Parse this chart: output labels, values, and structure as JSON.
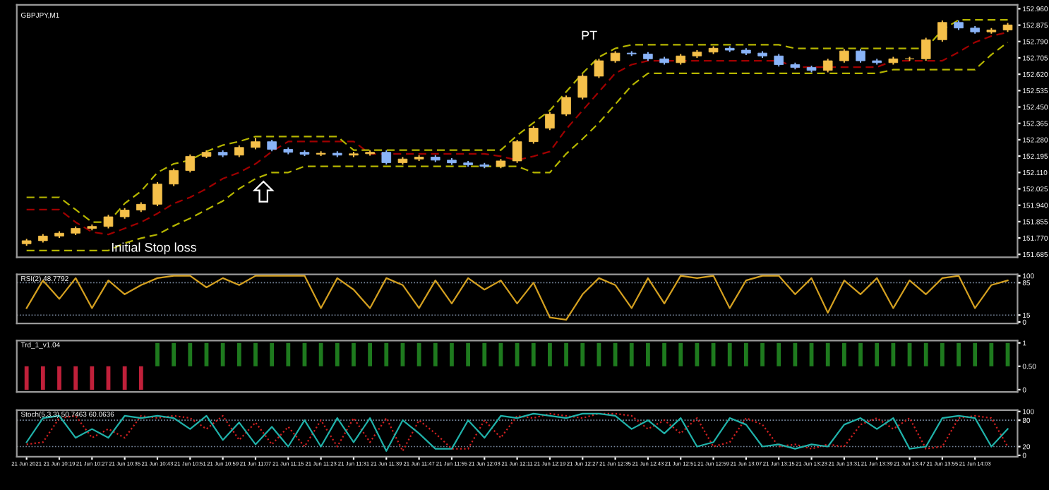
{
  "chart_data": [
    {
      "type": "candlestick",
      "title": "GBPJPY,M1",
      "categories": [
        null,
        null,
        null,
        null,
        null,
        null,
        null,
        null,
        null,
        null,
        null,
        null,
        null,
        null,
        null,
        null,
        null,
        null,
        null,
        null,
        null,
        null,
        null,
        null,
        null,
        null,
        null,
        null,
        null,
        null,
        null,
        null,
        null,
        null,
        null,
        null,
        null,
        null,
        null,
        null,
        null,
        null,
        null,
        null,
        null,
        null,
        null,
        null,
        null,
        null,
        null,
        null,
        null,
        null,
        null,
        null,
        null,
        null,
        null,
        null,
        null
      ],
      "ohlc": [
        [
          151.74,
          151.766,
          151.73,
          151.756
        ],
        [
          151.756,
          151.79,
          151.746,
          151.78
        ],
        [
          151.78,
          151.805,
          151.77,
          151.795
        ],
        [
          151.795,
          151.83,
          151.785,
          151.82
        ],
        [
          151.82,
          151.84,
          151.81,
          151.83
        ],
        [
          151.83,
          151.89,
          151.82,
          151.88
        ],
        [
          151.88,
          151.925,
          151.87,
          151.915
        ],
        [
          151.915,
          151.955,
          151.905,
          151.945
        ],
        [
          151.945,
          152.06,
          151.935,
          152.05
        ],
        [
          152.05,
          152.13,
          152.04,
          152.12
        ],
        [
          152.12,
          152.204,
          152.11,
          152.194
        ],
        [
          152.194,
          152.225,
          152.184,
          152.215
        ],
        [
          152.215,
          152.225,
          152.19,
          152.2
        ],
        [
          152.2,
          152.25,
          152.19,
          152.24
        ],
        [
          152.24,
          152.29,
          152.23,
          152.27
        ],
        [
          152.27,
          152.28,
          152.22,
          152.23
        ],
        [
          152.23,
          152.24,
          152.205,
          152.215
        ],
        [
          152.215,
          152.225,
          152.195,
          152.205
        ],
        [
          152.205,
          152.22,
          152.195,
          152.21
        ],
        [
          152.21,
          152.22,
          152.19,
          152.2
        ],
        [
          152.2,
          152.217,
          152.19,
          152.207
        ],
        [
          152.207,
          152.225,
          152.197,
          152.215
        ],
        [
          152.215,
          152.225,
          152.151,
          152.161
        ],
        [
          152.161,
          152.19,
          152.151,
          152.18
        ],
        [
          152.18,
          152.2,
          152.17,
          152.19
        ],
        [
          152.19,
          152.2,
          152.164,
          152.174
        ],
        [
          152.174,
          152.184,
          152.15,
          152.16
        ],
        [
          152.16,
          152.17,
          152.14,
          152.15
        ],
        [
          152.15,
          152.16,
          152.132,
          152.142
        ],
        [
          152.142,
          152.18,
          152.132,
          152.17
        ],
        [
          152.17,
          152.28,
          152.16,
          152.27
        ],
        [
          152.27,
          152.35,
          152.26,
          152.34
        ],
        [
          152.34,
          152.423,
          152.33,
          152.413
        ],
        [
          152.413,
          152.51,
          152.403,
          152.5
        ],
        [
          152.5,
          152.62,
          152.49,
          152.61
        ],
        [
          152.61,
          152.7,
          152.6,
          152.69
        ],
        [
          152.69,
          152.74,
          152.68,
          152.73
        ],
        [
          152.73,
          152.74,
          152.715,
          152.725
        ],
        [
          152.725,
          152.735,
          152.69,
          152.7
        ],
        [
          152.7,
          152.71,
          152.67,
          152.68
        ],
        [
          152.68,
          152.725,
          152.67,
          152.715
        ],
        [
          152.715,
          152.745,
          152.705,
          152.735
        ],
        [
          152.735,
          152.765,
          152.725,
          152.755
        ],
        [
          152.755,
          152.765,
          152.735,
          152.745
        ],
        [
          152.745,
          152.755,
          152.72,
          152.73
        ],
        [
          152.73,
          152.74,
          152.705,
          152.715
        ],
        [
          152.715,
          152.725,
          152.66,
          152.67
        ],
        [
          152.67,
          152.68,
          152.645,
          152.655
        ],
        [
          152.655,
          152.665,
          152.63,
          152.64
        ],
        [
          152.64,
          152.7,
          152.63,
          152.69
        ],
        [
          152.69,
          152.751,
          152.68,
          152.741
        ],
        [
          152.741,
          152.751,
          152.68,
          152.69
        ],
        [
          152.69,
          152.7,
          152.67,
          152.68
        ],
        [
          152.68,
          152.71,
          152.67,
          152.7
        ],
        [
          152.7,
          152.71,
          152.69,
          152.7
        ],
        [
          152.7,
          152.809,
          152.69,
          152.799
        ],
        [
          152.799,
          152.899,
          152.789,
          152.889
        ],
        [
          152.889,
          152.899,
          152.85,
          152.86
        ],
        [
          152.86,
          152.87,
          152.83,
          152.84
        ],
        [
          152.84,
          152.86,
          152.83,
          152.85
        ],
        [
          152.85,
          152.886,
          152.84,
          152.876
        ]
      ],
      "colors": [
        "#f5c04a",
        "#f5c04a",
        "#f5c04a",
        "#f5c04a",
        "#f5c04a",
        "#f5c04a",
        "#f5c04a",
        "#f5c04a",
        "#f5c04a",
        "#f5c04a",
        "#f5c04a",
        "#f5c04a",
        "#8ab4f8",
        "#f5c04a",
        "#f5c04a",
        "#8ab4f8",
        "#8ab4f8",
        "#8ab4f8",
        "#f5c04a",
        "#8ab4f8",
        "#f5c04a",
        "#f5c04a",
        "#8ab4f8",
        "#f5c04a",
        "#f5c04a",
        "#8ab4f8",
        "#8ab4f8",
        "#8ab4f8",
        "#8ab4f8",
        "#f5c04a",
        "#f5c04a",
        "#f5c04a",
        "#f5c04a",
        "#f5c04a",
        "#f5c04a",
        "#f5c04a",
        "#f5c04a",
        "#8ab4f8",
        "#8ab4f8",
        "#8ab4f8",
        "#f5c04a",
        "#f5c04a",
        "#f5c04a",
        "#8ab4f8",
        "#8ab4f8",
        "#8ab4f8",
        "#8ab4f8",
        "#8ab4f8",
        "#8ab4f8",
        "#f5c04a",
        "#f5c04a",
        "#8ab4f8",
        "#8ab4f8",
        "#f5c04a",
        "#f5c04a",
        "#f5c04a",
        "#f5c04a",
        "#8ab4f8",
        "#8ab4f8",
        "#f5c04a",
        "#f5c04a"
      ],
      "series": [
        {
          "type": "line",
          "color": "#b5b500",
          "line_style": "dashed",
          "values": [
            151.981,
            151.981,
            151.981,
            151.917,
            151.852,
            151.852,
            151.949,
            152.013,
            152.11,
            152.155,
            152.174,
            152.219,
            152.252,
            152.271,
            152.297,
            152.297,
            152.297,
            152.297,
            152.297,
            152.297,
            152.226,
            152.226,
            152.226,
            152.226,
            152.226,
            152.226,
            152.226,
            152.226,
            152.226,
            152.226,
            152.303,
            152.368,
            152.432,
            152.529,
            152.625,
            152.709,
            152.754,
            152.773,
            152.773,
            152.773,
            152.773,
            152.773,
            152.773,
            152.773,
            152.773,
            152.773,
            152.773,
            152.754,
            152.754,
            152.754,
            152.754,
            152.754,
            152.754,
            152.754,
            152.754,
            152.754,
            152.851,
            152.902,
            152.902,
            152.902,
            152.902
          ]
        },
        {
          "type": "line",
          "color": "#b5b500",
          "line_style": "dashed",
          "values": [
            151.705,
            151.705,
            151.705,
            151.705,
            151.705,
            151.705,
            151.743,
            151.769,
            151.788,
            151.833,
            151.872,
            151.917,
            151.962,
            152.026,
            152.078,
            152.11,
            152.11,
            152.142,
            152.142,
            152.142,
            152.142,
            152.142,
            152.142,
            152.142,
            152.142,
            152.142,
            152.142,
            152.142,
            152.142,
            152.142,
            152.142,
            152.11,
            152.11,
            152.207,
            152.284,
            152.368,
            152.464,
            152.561,
            152.625,
            152.625,
            152.625,
            152.625,
            152.625,
            152.625,
            152.625,
            152.625,
            152.625,
            152.625,
            152.625,
            152.625,
            152.625,
            152.625,
            152.625,
            152.644,
            152.644,
            152.644,
            152.644,
            152.644,
            152.644,
            152.722,
            152.786
          ]
        },
        {
          "type": "line",
          "color": "#a00000",
          "line_style": "dashed",
          "values": [
            151.917,
            151.917,
            151.917,
            151.852,
            151.801,
            151.788,
            151.82,
            151.852,
            151.897,
            151.949,
            151.981,
            152.026,
            152.078,
            152.11,
            152.155,
            152.219,
            152.271,
            152.271,
            152.271,
            152.271,
            152.271,
            152.207,
            152.207,
            152.207,
            152.207,
            152.207,
            152.207,
            152.207,
            152.207,
            152.194,
            152.174,
            152.194,
            152.219,
            152.335,
            152.432,
            152.529,
            152.625,
            152.67,
            152.69,
            152.69,
            152.69,
            152.69,
            152.69,
            152.69,
            152.69,
            152.69,
            152.69,
            152.657,
            152.657,
            152.657,
            152.657,
            152.657,
            152.657,
            152.69,
            152.69,
            152.69,
            152.69,
            152.735,
            152.786,
            152.818,
            152.838
          ]
        }
      ],
      "annotations": [
        "Initial Stop loss",
        "PT"
      ],
      "ylim": [
        151.67,
        152.98
      ],
      "yticks": [
        {
          "value": 151.685,
          "label": "151.685"
        },
        {
          "value": 151.77,
          "label": "151.770"
        },
        151.855,
        {
          "value": 151.94,
          "label": "151.940"
        },
        152.025,
        {
          "value": 152.11,
          "label": "152.110"
        },
        152.195,
        {
          "value": 152.28,
          "label": "152.280"
        },
        152.365,
        {
          "value": 152.45,
          "label": "152.450"
        },
        152.535,
        {
          "value": 152.62,
          "label": "152.620"
        },
        152.705,
        {
          "value": 152.79,
          "label": "152.790"
        },
        152.875,
        {
          "value": 152.96,
          "label": "152.960"
        }
      ],
      "tick_labels": "y"
    },
    {
      "type": "line",
      "title": "RSI(2) 48.7792",
      "categories": [
        null,
        null,
        null,
        null,
        null,
        null,
        null,
        null,
        null,
        null,
        null,
        null,
        null,
        null,
        null,
        null,
        null,
        null,
        null,
        null,
        null,
        null,
        null,
        null,
        null,
        null,
        null,
        null,
        null,
        null,
        null,
        null,
        null,
        null,
        null,
        null,
        null,
        null,
        null,
        null,
        null,
        null,
        null,
        null,
        null,
        null,
        null,
        null,
        null,
        null,
        null,
        null,
        null,
        null,
        null,
        null,
        null,
        null,
        null,
        null,
        null
      ],
      "series": [
        {
          "color": "#d4a020",
          "values": [
            30,
            90,
            50,
            95,
            30,
            90,
            60,
            80,
            95,
            100,
            100,
            75,
            95,
            80,
            100,
            100,
            100,
            100,
            30,
            95,
            70,
            30,
            95,
            80,
            30,
            90,
            40,
            95,
            70,
            90,
            40,
            85,
            10,
            5,
            60,
            95,
            80,
            30,
            95,
            40,
            100,
            95,
            100,
            30,
            90,
            100,
            100,
            60,
            95,
            20,
            90,
            60,
            95,
            30,
            90,
            60,
            95,
            100,
            30,
            80,
            90
          ]
        }
      ],
      "ref_lines": [
        {
          "axis": "y",
          "value": 85,
          "color": "#7a8aa0",
          "line_style": "dotted"
        },
        {
          "axis": "y",
          "value": 15,
          "color": "#7a8aa0",
          "line_style": "dotted"
        }
      ],
      "ylim": [
        -3,
        103
      ],
      "yticks": [
        0,
        15,
        85,
        100
      ],
      "tick_labels": "y"
    },
    {
      "type": "bar",
      "title": "Trd_1_v1.04",
      "categories": [
        null,
        null,
        null,
        null,
        null,
        null,
        null,
        null,
        null,
        null,
        null,
        null,
        null,
        null,
        null,
        null,
        null,
        null,
        null,
        null,
        null,
        null,
        null,
        null,
        null,
        null,
        null,
        null,
        null,
        null,
        null,
        null,
        null,
        null,
        null,
        null,
        null,
        null,
        null,
        null,
        null,
        null,
        null,
        null,
        null,
        null,
        null,
        null,
        null,
        null,
        null,
        null,
        null,
        null,
        null,
        null,
        null,
        null,
        null,
        null,
        null
      ],
      "values": [
        0.5,
        0.5,
        0.5,
        0.5,
        0.5,
        0.5,
        0.5,
        0.5,
        0.5,
        0.5,
        0.5,
        0.5,
        0.5,
        0.5,
        0.5,
        0.5,
        0.5,
        0.5,
        0.5,
        0.5,
        0.5,
        0.5,
        0.5,
        0.5,
        0.5,
        0.5,
        0.5,
        0.5,
        0.5,
        0.5,
        0.5,
        0.5,
        0.5,
        0.5,
        0.5,
        0.5,
        0.5,
        0.5,
        0.5,
        0.5,
        0.5,
        0.5,
        0.5,
        0.5,
        0.5,
        0.5,
        0.5,
        0.5,
        0.5,
        0.5,
        0.5,
        0.5,
        0.5,
        0.5,
        0.5,
        0.5,
        0.5,
        0.5,
        0.5,
        0.5,
        0.5
      ],
      "base": [
        0,
        0,
        0,
        0,
        0,
        0,
        0,
        0,
        0.5,
        0.5,
        0.5,
        0.5,
        0.5,
        0.5,
        0.5,
        0.5,
        0.5,
        0.5,
        0.5,
        0.5,
        0.5,
        0.5,
        0.5,
        0.5,
        0.5,
        0.5,
        0.5,
        0.5,
        0.5,
        0.5,
        0.5,
        0.5,
        0.5,
        0.5,
        0.5,
        0.5,
        0.5,
        0.5,
        0.5,
        0.5,
        0.5,
        0.5,
        0.5,
        0.5,
        0.5,
        0.5,
        0.5,
        0.5,
        0.5,
        0.5,
        0.5,
        0.5,
        0.5,
        0.5,
        0.5,
        0.5,
        0.5,
        0.5,
        0.5,
        0.5,
        0.5
      ],
      "colors": [
        "#c0203a",
        "#c0203a",
        "#c0203a",
        "#c0203a",
        "#c0203a",
        "#c0203a",
        "#c0203a",
        "#c0203a",
        "#1e7a1e",
        "#1e7a1e",
        "#1e7a1e",
        "#1e7a1e",
        "#1e7a1e",
        "#1e7a1e",
        "#1e7a1e",
        "#1e7a1e",
        "#1e7a1e",
        "#1e7a1e",
        "#1e7a1e",
        "#1e7a1e",
        "#1e7a1e",
        "#1e7a1e",
        "#1e7a1e",
        "#1e7a1e",
        "#1e7a1e",
        "#1e7a1e",
        "#1e7a1e",
        "#1e7a1e",
        "#1e7a1e",
        "#1e7a1e",
        "#1e7a1e",
        "#1e7a1e",
        "#1e7a1e",
        "#1e7a1e",
        "#1e7a1e",
        "#1e7a1e",
        "#1e7a1e",
        "#1e7a1e",
        "#1e7a1e",
        "#1e7a1e",
        "#1e7a1e",
        "#1e7a1e",
        "#1e7a1e",
        "#1e7a1e",
        "#1e7a1e",
        "#1e7a1e",
        "#1e7a1e",
        "#1e7a1e",
        "#1e7a1e",
        "#1e7a1e",
        "#1e7a1e",
        "#1e7a1e",
        "#1e7a1e",
        "#1e7a1e",
        "#1e7a1e",
        "#1e7a1e",
        "#1e7a1e",
        "#1e7a1e",
        "#1e7a1e",
        "#1e7a1e",
        "#1e7a1e"
      ],
      "ylim": [
        -0.05,
        1.05
      ],
      "yticks": [
        0,
        {
          "value": 0.5,
          "label": "0.50"
        },
        1
      ],
      "tick_labels": "y"
    },
    {
      "type": "line",
      "title": "Stoch(5,3,3) 50.7463 60.0636",
      "categories": [
        "21 Jun 2021",
        null,
        "21 Jun 10:19",
        null,
        "21 Jun 10:27",
        null,
        "21 Jun 10:35",
        null,
        "21 Jun 10:43",
        null,
        "21 Jun 10:51",
        null,
        "21 Jun 10:59",
        null,
        "21 Jun 11:07",
        null,
        "21 Jun 11:15",
        null,
        "21 Jun 11:23",
        null,
        "21 Jun 11:31",
        null,
        "21 Jun 11:39",
        null,
        "21 Jun 11:47",
        null,
        "21 Jun 11:55",
        null,
        "21 Jun 12:03",
        null,
        "21 Jun 12:11",
        null,
        "21 Jun 12:19",
        null,
        "21 Jun 12:27",
        null,
        "21 Jun 12:35",
        null,
        "21 Jun 12:43",
        null,
        "21 Jun 12:51",
        null,
        "21 Jun 12:59",
        null,
        "21 Jun 13:07",
        null,
        "21 Jun 13:15",
        null,
        "21 Jun 13:23",
        null,
        "21 Jun 13:31",
        null,
        "21 Jun 13:39",
        null,
        "21 Jun 13:47",
        null,
        "21 Jun 13:55",
        null,
        "21 Jun 14:03",
        null,
        null
      ],
      "series": [
        {
          "color": "#20b2aa",
          "values": [
            30,
            85,
            90,
            40,
            60,
            40,
            90,
            85,
            90,
            85,
            60,
            90,
            35,
            75,
            25,
            65,
            20,
            80,
            20,
            85,
            30,
            85,
            10,
            80,
            50,
            15,
            15,
            80,
            40,
            90,
            85,
            95,
            90,
            85,
            95,
            95,
            90,
            60,
            80,
            50,
            85,
            20,
            30,
            85,
            70,
            20,
            25,
            15,
            25,
            20,
            70,
            85,
            60,
            85,
            15,
            20,
            85,
            90,
            85,
            20,
            60
          ]
        },
        {
          "color": "#d02020",
          "line_style": "dotted",
          "values": [
            25,
            30,
            85,
            90,
            40,
            60,
            40,
            90,
            85,
            90,
            85,
            60,
            90,
            35,
            75,
            25,
            65,
            20,
            80,
            20,
            85,
            30,
            85,
            10,
            80,
            50,
            15,
            15,
            80,
            40,
            90,
            85,
            95,
            90,
            85,
            95,
            95,
            90,
            60,
            80,
            50,
            85,
            20,
            30,
            85,
            70,
            20,
            25,
            15,
            25,
            20,
            70,
            85,
            60,
            85,
            15,
            20,
            85,
            90,
            85,
            20
          ]
        }
      ],
      "ref_lines": [
        {
          "axis": "y",
          "value": 80,
          "color": "#7a8aa0",
          "line_style": "dotted"
        },
        {
          "axis": "y",
          "value": 20,
          "color": "#7a8aa0",
          "line_style": "dotted"
        }
      ],
      "ylim": [
        -3,
        103
      ],
      "yticks": [
        0,
        20,
        80,
        100
      ]
    }
  ]
}
